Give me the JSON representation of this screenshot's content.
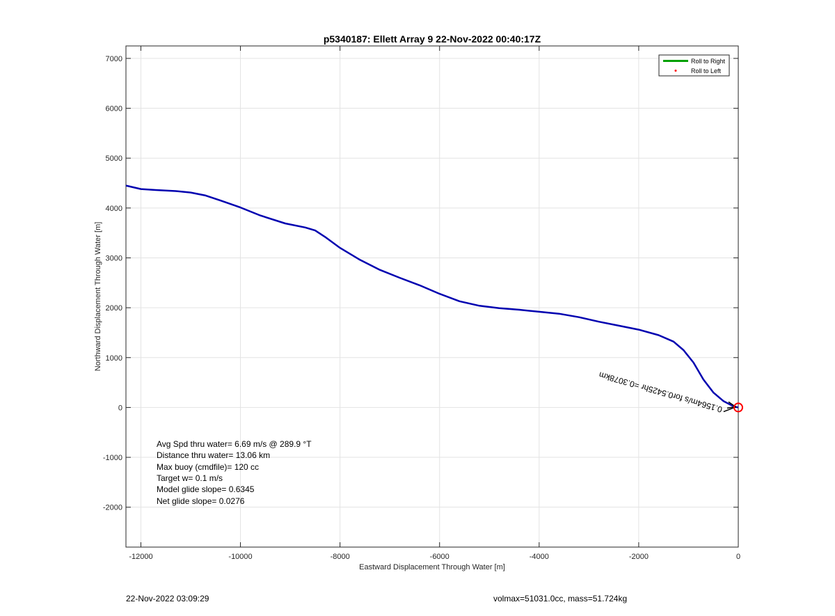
{
  "chart_data": {
    "type": "line",
    "title": "p5340187: Ellett Array 9 22-Nov-2022 00:40:17Z",
    "xlabel": "Eastward Displacement Through Water [m]",
    "ylabel": "Northward Displacement Through Water [m]",
    "xlim": [
      -12300,
      0
    ],
    "ylim": [
      -2800,
      7250
    ],
    "xticks": [
      -12000,
      -10000,
      -8000,
      -6000,
      -4000,
      -2000,
      0
    ],
    "yticks": [
      -2000,
      -1000,
      0,
      1000,
      2000,
      3000,
      4000,
      5000,
      6000,
      7000
    ],
    "grid": true,
    "legend_position": "top-right",
    "legend": [
      {
        "label": "Roll to Right",
        "color": "#00a000",
        "style": "line"
      },
      {
        "label": "Roll to Left",
        "color": "#ff0000",
        "style": "dot"
      }
    ],
    "series": [
      {
        "color": "#0000b0",
        "x": [
          -12300,
          -12000,
          -11700,
          -11300,
          -11000,
          -10700,
          -10400,
          -10000,
          -9600,
          -9100,
          -8700,
          -8500,
          -8300,
          -8000,
          -7600,
          -7200,
          -6800,
          -6400,
          -6000,
          -5600,
          -5200,
          -4800,
          -4400,
          -4000,
          -3600,
          -3200,
          -2800,
          -2400,
          -2000,
          -1600,
          -1300,
          -1100,
          -900,
          -700,
          -500,
          -300,
          -150,
          -50,
          0
        ],
        "y": [
          4450,
          4380,
          4360,
          4340,
          4310,
          4250,
          4150,
          4010,
          3850,
          3690,
          3610,
          3550,
          3420,
          3200,
          2960,
          2760,
          2600,
          2450,
          2280,
          2130,
          2040,
          1990,
          1960,
          1920,
          1880,
          1810,
          1720,
          1640,
          1560,
          1450,
          1320,
          1150,
          900,
          560,
          300,
          130,
          50,
          10,
          0
        ]
      }
    ],
    "end_marker": {
      "x": 0,
      "y": 0,
      "color": "#ff0000"
    },
    "current_arrow": {
      "label": "0.1564m/s for0.5425hr =0.3078km",
      "color": "#000000"
    },
    "annotations": [
      "Avg Spd thru water=  6.69 m/s @ 289.9 °T",
      "Distance thru water= 13.06 km",
      "Max buoy (cmdfile)= 120 cc",
      "Target w= 0.1 m/s",
      "Model glide slope= 0.6345",
      "Net glide slope= 0.0276"
    ]
  },
  "footer": {
    "left": "22-Nov-2022 03:09:29",
    "right": "volmax=51031.0cc, mass=51.724kg"
  }
}
